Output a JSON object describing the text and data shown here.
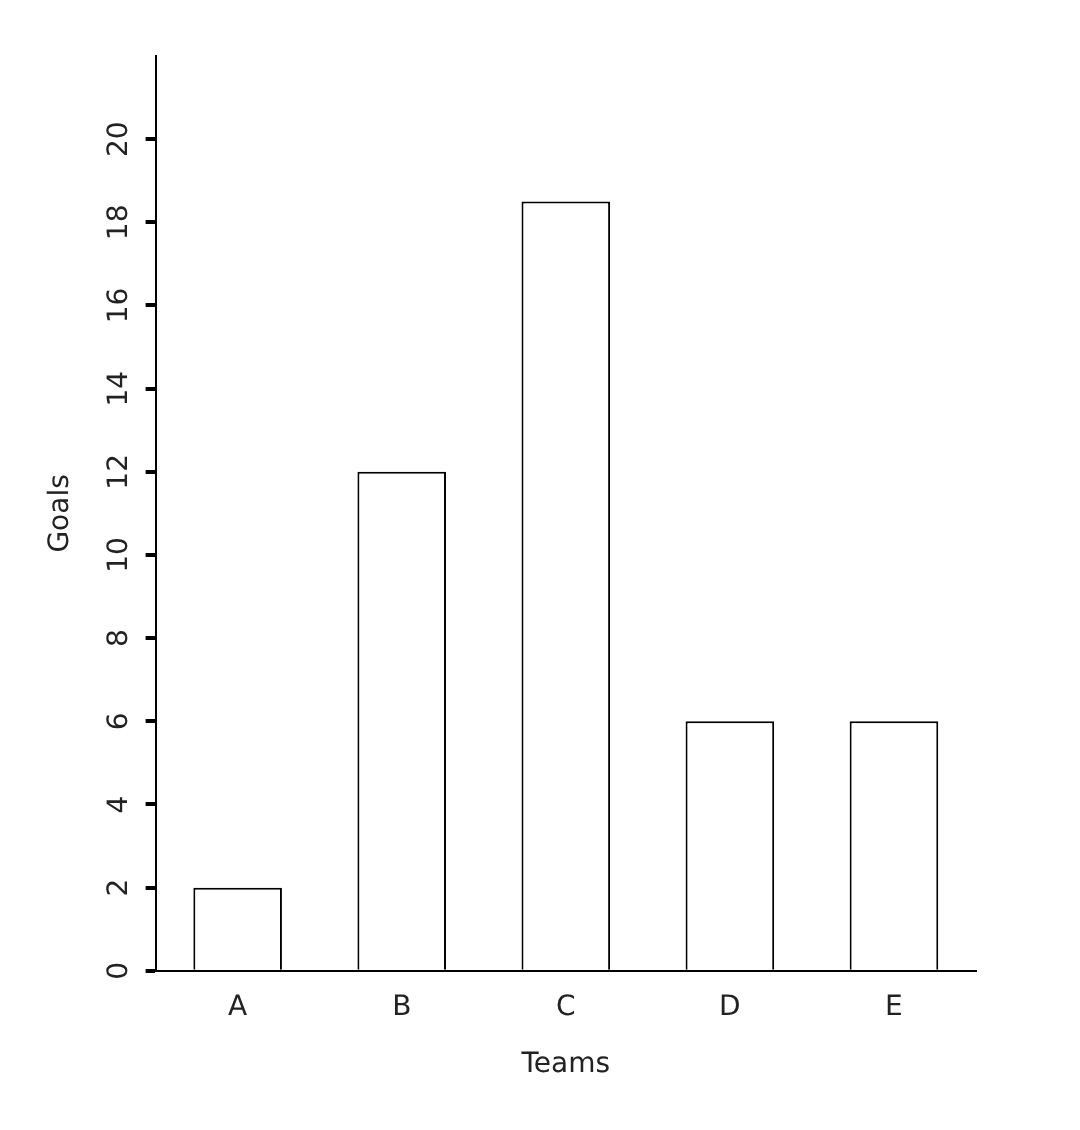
{
  "chart_data": {
    "type": "bar",
    "xlabel": "Teams",
    "ylabel": "Goals",
    "categories": [
      "A",
      "B",
      "C",
      "D",
      "E"
    ],
    "values": [
      2,
      12,
      18.5,
      6,
      6
    ],
    "color": "#ffffff",
    "ylim": [
      0,
      22
    ],
    "yticks": [
      0,
      2,
      4,
      6,
      8,
      10,
      12,
      14,
      16,
      18,
      20
    ],
    "grid": false
  }
}
